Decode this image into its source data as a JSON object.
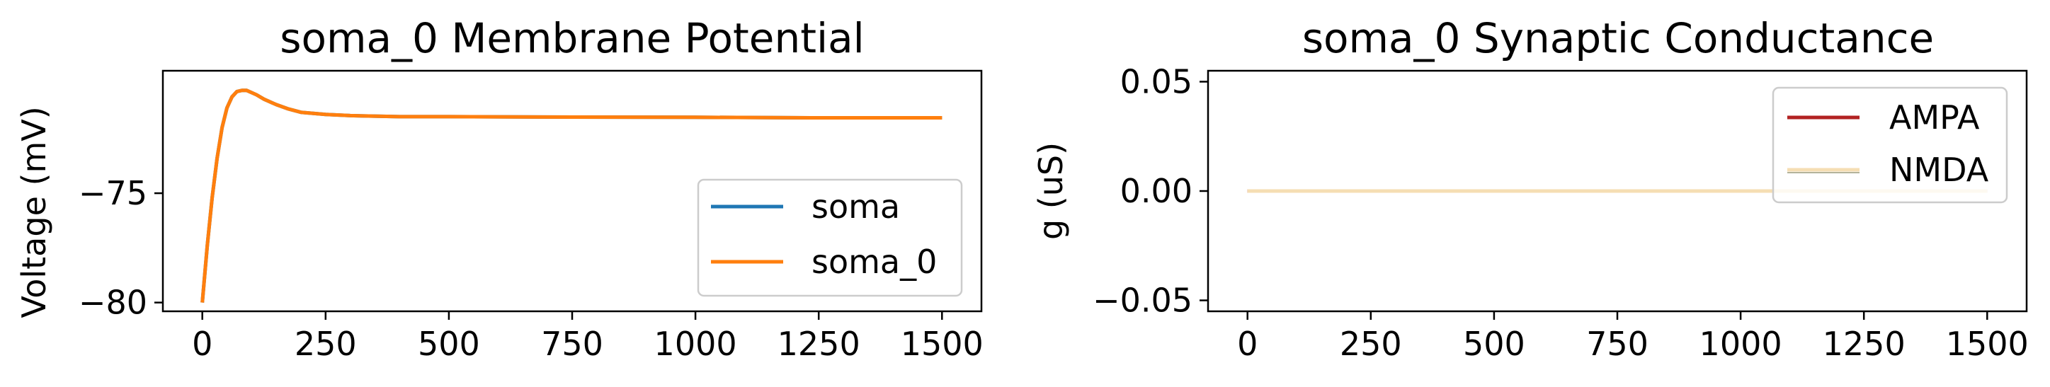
{
  "chart_data": [
    {
      "type": "line",
      "title": "soma_0 Membrane Potential",
      "xlabel": "",
      "ylabel": "Voltage (mV)",
      "xlim": [
        -80,
        1580
      ],
      "ylim": [
        -80.4,
        -69.4
      ],
      "xticks": [
        0,
        250,
        500,
        750,
        1000,
        1250,
        1500
      ],
      "xtick_labels": [
        "0",
        "250",
        "500",
        "750",
        "1000",
        "1250",
        "1500"
      ],
      "yticks": [
        -80,
        -75
      ],
      "ytick_labels": [
        "−80",
        "−75"
      ],
      "legend_position": "lower-right",
      "series": [
        {
          "name": "soma",
          "color": "#1f77b4",
          "x": [
            0,
            10,
            20,
            30,
            40,
            50,
            60,
            70,
            80,
            90,
            100,
            110,
            125,
            150,
            175,
            200,
            250,
            300,
            400,
            500,
            750,
            1000,
            1250,
            1500
          ],
          "y": [
            -80,
            -77.4,
            -75.2,
            -73.4,
            -72.0,
            -71.1,
            -70.6,
            -70.35,
            -70.3,
            -70.3,
            -70.4,
            -70.5,
            -70.7,
            -70.95,
            -71.15,
            -71.3,
            -71.4,
            -71.45,
            -71.5,
            -71.5,
            -71.52,
            -71.53,
            -71.55,
            -71.55
          ]
        },
        {
          "name": "soma_0",
          "color": "#ff7f0e",
          "x": [
            0,
            10,
            20,
            30,
            40,
            50,
            60,
            70,
            80,
            90,
            100,
            110,
            125,
            150,
            175,
            200,
            250,
            300,
            400,
            500,
            750,
            1000,
            1250,
            1500
          ],
          "y": [
            -80,
            -77.4,
            -75.2,
            -73.4,
            -72.0,
            -71.1,
            -70.6,
            -70.35,
            -70.3,
            -70.3,
            -70.4,
            -70.5,
            -70.7,
            -70.95,
            -71.15,
            -71.3,
            -71.4,
            -71.45,
            -71.5,
            -71.5,
            -71.52,
            -71.53,
            -71.55,
            -71.55
          ]
        }
      ]
    },
    {
      "type": "line",
      "title": "soma_0 Synaptic Conductance",
      "xlabel": "",
      "ylabel": "g (uS)",
      "xlim": [
        -80,
        1580
      ],
      "ylim": [
        -0.055,
        0.055
      ],
      "xticks": [
        0,
        250,
        500,
        750,
        1000,
        1250,
        1500
      ],
      "xtick_labels": [
        "0",
        "250",
        "500",
        "750",
        "1000",
        "1250",
        "1500"
      ],
      "yticks": [
        -0.05,
        0.0,
        0.05
      ],
      "ytick_labels": [
        "−0.05",
        "0.00",
        "0.05"
      ],
      "legend_position": "upper-right",
      "series": [
        {
          "name": "AMPA",
          "color": "#b22222",
          "x": [
            0,
            1500
          ],
          "y": [
            0,
            0
          ]
        },
        {
          "name": "NMDA",
          "color": "#f5deb3",
          "x": [
            0,
            1500
          ],
          "y": [
            0,
            0
          ]
        }
      ]
    }
  ]
}
